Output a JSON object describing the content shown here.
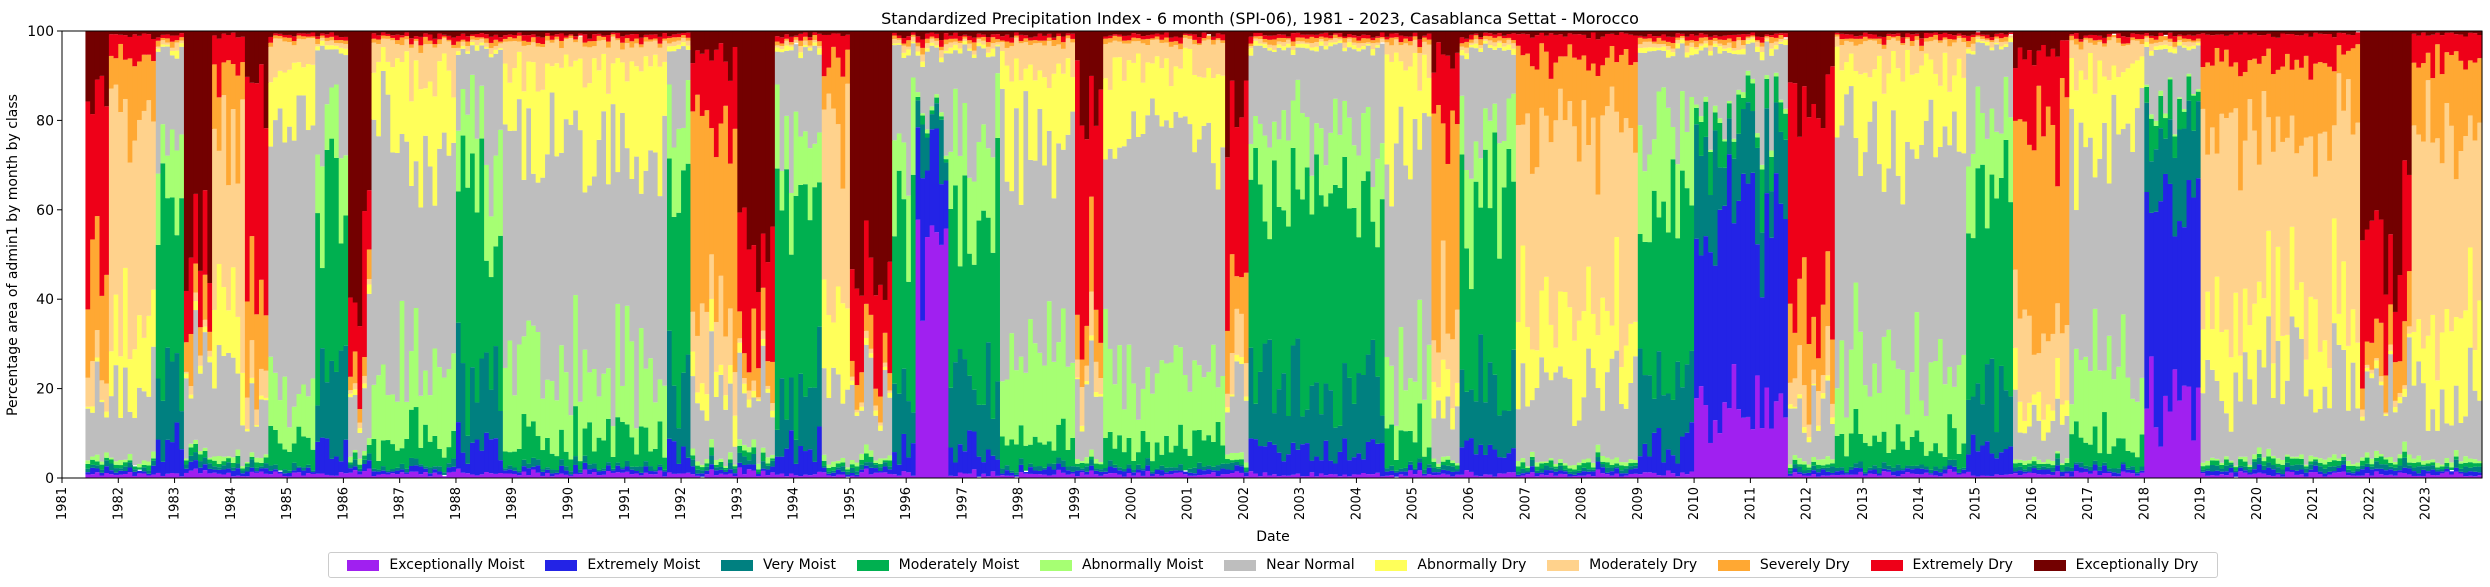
{
  "chart_data": {
    "type": "area",
    "title": "Standardized Precipitation Index - 6 month (SPI-06), 1981 - 2023, Casablanca Settat - Morocco",
    "xlabel": "Date",
    "ylabel": "Percentage area of admin1 by month by class",
    "ylim": [
      0,
      100
    ],
    "yticks": [
      0,
      20,
      40,
      60,
      80,
      100
    ],
    "xlim": [
      "1981-01",
      "2023-12"
    ],
    "xticks": [
      "1981",
      "1982",
      "1983",
      "1984",
      "1985",
      "1986",
      "1987",
      "1988",
      "1989",
      "1990",
      "1991",
      "1992",
      "1993",
      "1994",
      "1995",
      "1996",
      "1997",
      "1998",
      "1999",
      "2000",
      "2001",
      "2002",
      "2003",
      "2004",
      "2005",
      "2006",
      "2007",
      "2008",
      "2009",
      "2010",
      "2011",
      "2012",
      "2013",
      "2014",
      "2015",
      "2016",
      "2017",
      "2018",
      "2019",
      "2020",
      "2021",
      "2022",
      "2023"
    ],
    "legend_position": "bottom-center",
    "stack_order": [
      "Exceptionally Moist",
      "Extremely Moist",
      "Very Moist",
      "Moderately Moist",
      "Abnormally Moist",
      "Near Normal",
      "Abnormally Dry",
      "Moderately Dry",
      "Severely Dry",
      "Extremely Dry",
      "Exceptionally Dry"
    ],
    "series": [
      {
        "name": "Exceptionally Moist",
        "color": "#a020f0"
      },
      {
        "name": "Extremely Moist",
        "color": "#2323e6"
      },
      {
        "name": "Very Moist",
        "color": "#008080"
      },
      {
        "name": "Moderately Moist",
        "color": "#00b050"
      },
      {
        "name": "Abnormally Moist",
        "color": "#a6ff73"
      },
      {
        "name": "Near Normal",
        "color": "#bebebe"
      },
      {
        "name": "Abnormally Dry",
        "color": "#ffff5a"
      },
      {
        "name": "Moderately Dry",
        "color": "#ffd28c"
      },
      {
        "name": "Severely Dry",
        "color": "#ffa833"
      },
      {
        "name": "Extremely Dry",
        "color": "#ee0018"
      },
      {
        "name": "Exceptionally Dry",
        "color": "#730000"
      }
    ],
    "monthly_regime": [
      {
        "from": "1981-06",
        "to": "1981-10",
        "dominant": "Extremely Dry"
      },
      {
        "from": "1981-11",
        "to": "1982-08",
        "dominant": "Moderately Dry"
      },
      {
        "from": "1982-09",
        "to": "1983-02",
        "dominant": "Moderately Moist"
      },
      {
        "from": "1983-03",
        "to": "1983-08",
        "dominant": "Exceptionally Dry"
      },
      {
        "from": "1983-09",
        "to": "1984-03",
        "dominant": "Moderately Dry"
      },
      {
        "from": "1984-04",
        "to": "1984-08",
        "dominant": "Extremely Dry"
      },
      {
        "from": "1984-09",
        "to": "1985-06",
        "dominant": "Near Normal"
      },
      {
        "from": "1985-07",
        "to": "1986-01",
        "dominant": "Moderately Moist"
      },
      {
        "from": "1986-02",
        "to": "1986-06",
        "dominant": "Exceptionally Dry"
      },
      {
        "from": "1986-07",
        "to": "1987-12",
        "dominant": "Near Normal"
      },
      {
        "from": "1988-01",
        "to": "1988-10",
        "dominant": "Moderately Moist"
      },
      {
        "from": "1988-11",
        "to": "1991-09",
        "dominant": "Near Normal"
      },
      {
        "from": "1991-10",
        "to": "1992-02",
        "dominant": "Moderately Moist"
      },
      {
        "from": "1992-03",
        "to": "1992-12",
        "dominant": "Severely Dry"
      },
      {
        "from": "1993-01",
        "to": "1993-08",
        "dominant": "Exceptionally Dry"
      },
      {
        "from": "1993-09",
        "to": "1994-06",
        "dominant": "Moderately Moist"
      },
      {
        "from": "1994-07",
        "to": "1994-12",
        "dominant": "Moderately Dry"
      },
      {
        "from": "1995-01",
        "to": "1995-09",
        "dominant": "Exceptionally Dry"
      },
      {
        "from": "1995-10",
        "to": "1996-02",
        "dominant": "Moderately Moist"
      },
      {
        "from": "1996-03",
        "to": "1996-09",
        "dominant": "Exceptionally Moist"
      },
      {
        "from": "1996-10",
        "to": "1997-08",
        "dominant": "Moderately Moist"
      },
      {
        "from": "1997-09",
        "to": "1998-12",
        "dominant": "Near Normal"
      },
      {
        "from": "1999-01",
        "to": "1999-06",
        "dominant": "Extremely Dry"
      },
      {
        "from": "1999-07",
        "to": "2001-08",
        "dominant": "Near Normal"
      },
      {
        "from": "2001-09",
        "to": "2002-01",
        "dominant": "Extremely Dry"
      },
      {
        "from": "2002-02",
        "to": "2004-06",
        "dominant": "Moderately Moist"
      },
      {
        "from": "2004-07",
        "to": "2005-04",
        "dominant": "Near Normal"
      },
      {
        "from": "2005-05",
        "to": "2005-10",
        "dominant": "Severely Dry"
      },
      {
        "from": "2005-11",
        "to": "2006-10",
        "dominant": "Moderately Moist"
      },
      {
        "from": "2006-11",
        "to": "2008-12",
        "dominant": "Moderately Dry"
      },
      {
        "from": "2009-01",
        "to": "2009-12",
        "dominant": "Moderately Moist"
      },
      {
        "from": "2010-01",
        "to": "2011-08",
        "dominant": "Extremely Moist"
      },
      {
        "from": "2011-09",
        "to": "2012-06",
        "dominant": "Extremely Dry"
      },
      {
        "from": "2012-07",
        "to": "2014-10",
        "dominant": "Near Normal"
      },
      {
        "from": "2014-11",
        "to": "2015-08",
        "dominant": "Moderately Moist"
      },
      {
        "from": "2015-09",
        "to": "2016-08",
        "dominant": "Severely Dry"
      },
      {
        "from": "2016-09",
        "to": "2017-12",
        "dominant": "Near Normal"
      },
      {
        "from": "2018-01",
        "to": "2018-12",
        "dominant": "Extremely Moist"
      },
      {
        "from": "2019-01",
        "to": "2021-10",
        "dominant": "Moderately Dry"
      },
      {
        "from": "2021-11",
        "to": "2022-09",
        "dominant": "Exceptionally Dry"
      },
      {
        "from": "2022-10",
        "to": "2023-12",
        "dominant": "Moderately Dry"
      }
    ]
  }
}
